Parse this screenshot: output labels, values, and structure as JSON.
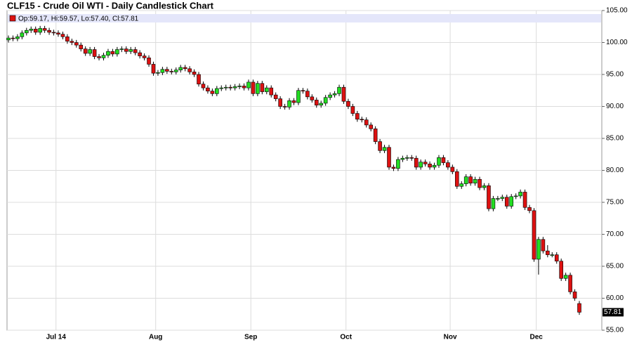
{
  "chart_data": {
    "type": "candlestick",
    "title": "CLF15 - Crude Oil WTI - Daily Candlestick Chart",
    "legend": "Op:59.17, Hi:59.57, Lo:57.40, Cl:57.81",
    "price_tag": "57.81",
    "up_color": "#22dd22",
    "down_color": "#dd1111",
    "categories": [
      null,
      null,
      null,
      null,
      null,
      null,
      null,
      null,
      null,
      null,
      null,
      "Jul 14",
      null,
      null,
      null,
      null,
      null,
      null,
      null,
      null,
      null,
      null,
      null,
      null,
      null,
      null,
      null,
      null,
      null,
      null,
      null,
      null,
      null,
      "Aug",
      null,
      null,
      null,
      null,
      null,
      null,
      null,
      null,
      null,
      null,
      null,
      null,
      null,
      null,
      null,
      null,
      null,
      null,
      null,
      null,
      "Sep",
      null,
      null,
      null,
      null,
      null,
      null,
      null,
      null,
      null,
      null,
      null,
      null,
      null,
      null,
      null,
      null,
      null,
      null,
      null,
      null,
      "Oct",
      null,
      null,
      null,
      null,
      null,
      null,
      null,
      null,
      null,
      null,
      null,
      null,
      null,
      null,
      null,
      null,
      null,
      null,
      null,
      null,
      null,
      null,
      "Nov",
      null,
      null,
      null,
      null,
      null,
      null,
      null,
      null,
      null,
      null,
      null,
      null,
      null,
      null,
      null,
      null,
      null,
      null,
      "Dec",
      null,
      null,
      null,
      null,
      null,
      null,
      null,
      null,
      null
    ],
    "open": [
      100.4,
      100.7,
      100.6,
      100.9,
      101.5,
      101.9,
      102.1,
      101.6,
      102.2,
      101.9,
      101.6,
      101.5,
      101.3,
      100.9,
      100.2,
      100.0,
      99.6,
      99.0,
      98.3,
      98.9,
      97.8,
      97.6,
      98.0,
      98.6,
      98.2,
      98.9,
      99.0,
      98.6,
      98.9,
      98.4,
      97.9,
      97.6,
      96.6,
      95.2,
      95.3,
      95.8,
      95.5,
      95.4,
      95.7,
      96.1,
      95.9,
      95.4,
      95.0,
      93.5,
      92.9,
      92.4,
      92.0,
      92.8,
      92.9,
      93.0,
      92.9,
      93.1,
      93.2,
      92.9,
      93.8,
      92.0,
      93.6,
      92.3,
      92.9,
      91.8,
      91.2,
      90.0,
      89.9,
      90.9,
      90.6,
      92.5,
      92.4,
      91.5,
      91.0,
      90.2,
      90.5,
      91.4,
      91.8,
      92.0,
      93.0,
      90.8,
      90.0,
      88.9,
      88.0,
      87.9,
      87.1,
      86.5,
      84.5,
      83.1,
      83.6,
      80.5,
      80.3,
      81.7,
      81.9,
      82.0,
      81.9,
      80.5,
      81.3,
      81.0,
      80.5,
      80.8,
      82.0,
      81.2,
      80.5,
      79.8,
      77.5,
      77.9,
      79.0,
      78.0,
      78.6,
      77.3,
      77.6,
      74.0,
      75.6,
      75.6,
      75.8,
      74.4,
      75.9,
      76.0,
      76.6,
      74.2,
      73.7,
      66.1,
      69.2,
      67.4,
      66.8,
      66.8,
      65.8,
      63.1,
      63.6,
      61.0,
      59.17
    ],
    "high": [
      101.1,
      101.1,
      101.3,
      101.9,
      102.3,
      102.5,
      102.5,
      102.6,
      102.6,
      102.3,
      102.0,
      101.9,
      101.7,
      101.3,
      100.6,
      100.4,
      100.0,
      99.4,
      99.3,
      99.3,
      98.2,
      98.4,
      99.0,
      99.0,
      99.3,
      99.4,
      99.4,
      99.3,
      99.3,
      98.8,
      98.3,
      98.0,
      97.0,
      95.7,
      96.2,
      96.2,
      95.9,
      96.1,
      96.5,
      96.5,
      96.3,
      95.8,
      95.4,
      93.9,
      93.3,
      92.8,
      93.2,
      93.3,
      93.4,
      93.4,
      93.5,
      93.6,
      93.6,
      94.2,
      94.2,
      94.0,
      94.0,
      93.3,
      93.3,
      92.2,
      91.6,
      90.4,
      91.3,
      91.3,
      92.9,
      92.9,
      92.8,
      91.9,
      91.4,
      90.9,
      91.8,
      92.2,
      92.4,
      93.4,
      93.4,
      91.2,
      90.4,
      89.3,
      88.4,
      88.3,
      87.5,
      86.9,
      84.9,
      84.0,
      84.0,
      80.9,
      82.1,
      82.3,
      82.4,
      82.4,
      82.3,
      81.7,
      81.7,
      81.4,
      81.2,
      82.4,
      82.4,
      81.6,
      80.9,
      80.2,
      78.3,
      79.4,
      79.4,
      79.0,
      79.0,
      78.0,
      78.0,
      76.0,
      76.0,
      76.2,
      76.2,
      76.3,
      76.4,
      77.0,
      77.0,
      74.6,
      74.1,
      69.6,
      69.6,
      68.3,
      67.2,
      67.2,
      66.2,
      64.0,
      64.0,
      61.4,
      59.57
    ],
    "low": [
      100.0,
      100.2,
      100.2,
      100.5,
      101.1,
      101.5,
      101.2,
      101.2,
      101.5,
      101.2,
      101.1,
      100.9,
      100.5,
      99.8,
      99.6,
      99.2,
      98.6,
      97.9,
      97.9,
      97.4,
      97.2,
      97.2,
      97.6,
      97.8,
      97.8,
      98.5,
      98.2,
      98.2,
      98.0,
      97.5,
      97.2,
      96.2,
      94.8,
      94.8,
      94.9,
      95.1,
      95.0,
      95.0,
      95.3,
      95.5,
      95.0,
      94.6,
      93.1,
      92.5,
      92.0,
      91.6,
      91.6,
      92.4,
      92.5,
      92.5,
      92.5,
      92.7,
      92.5,
      92.5,
      91.6,
      91.6,
      91.9,
      91.9,
      91.4,
      90.8,
      89.6,
      89.5,
      89.5,
      90.2,
      90.2,
      92.0,
      91.1,
      90.6,
      89.8,
      89.8,
      90.1,
      91.0,
      91.4,
      91.6,
      90.4,
      89.6,
      88.5,
      87.6,
      87.5,
      86.7,
      86.1,
      84.1,
      82.7,
      82.7,
      80.1,
      79.9,
      79.9,
      81.3,
      81.5,
      81.5,
      80.1,
      80.1,
      80.6,
      80.1,
      80.1,
      80.4,
      80.8,
      80.1,
      79.4,
      77.1,
      77.1,
      77.5,
      77.6,
      77.6,
      76.9,
      76.9,
      73.6,
      73.6,
      75.2,
      75.2,
      74.0,
      74.0,
      75.5,
      75.6,
      73.8,
      73.3,
      65.7,
      63.7,
      67.0,
      66.4,
      66.4,
      65.4,
      62.7,
      62.7,
      60.6,
      59.6,
      57.4
    ],
    "close": [
      100.7,
      100.6,
      100.9,
      101.5,
      101.9,
      102.1,
      101.6,
      102.2,
      101.9,
      101.6,
      101.5,
      101.3,
      100.9,
      100.2,
      100.0,
      99.6,
      99.0,
      98.3,
      98.9,
      97.8,
      97.6,
      98.0,
      98.6,
      98.2,
      98.9,
      99.0,
      98.6,
      98.9,
      98.4,
      97.9,
      97.6,
      96.6,
      95.2,
      95.3,
      95.8,
      95.5,
      95.4,
      95.7,
      96.1,
      95.9,
      95.4,
      95.0,
      93.5,
      92.9,
      92.4,
      92.0,
      92.8,
      92.9,
      93.0,
      92.9,
      93.1,
      93.2,
      92.9,
      93.8,
      92.0,
      93.6,
      92.3,
      92.9,
      91.8,
      91.2,
      90.0,
      89.9,
      90.9,
      90.6,
      92.5,
      92.4,
      91.5,
      91.0,
      90.2,
      90.5,
      91.4,
      91.8,
      92.0,
      93.0,
      90.8,
      90.0,
      88.9,
      88.0,
      87.9,
      87.1,
      86.5,
      84.5,
      83.1,
      83.6,
      80.5,
      80.3,
      81.7,
      81.9,
      82.0,
      81.9,
      80.5,
      81.3,
      81.0,
      80.5,
      80.8,
      82.0,
      81.2,
      80.5,
      79.8,
      77.5,
      77.9,
      79.0,
      78.0,
      78.6,
      77.3,
      77.6,
      74.0,
      75.6,
      75.6,
      75.8,
      74.4,
      75.9,
      76.0,
      76.6,
      74.2,
      73.7,
      66.1,
      69.2,
      67.4,
      66.8,
      66.8,
      65.8,
      63.1,
      63.6,
      61.0,
      60.0,
      57.81
    ],
    "ylim": [
      55,
      105
    ],
    "yticks": [
      {
        "value": 55,
        "label": "55.00"
      },
      {
        "value": 60,
        "label": "60.00"
      },
      {
        "value": 65,
        "label": "65.00"
      },
      {
        "value": 70,
        "label": "70.00"
      },
      {
        "value": 75,
        "label": "75.00"
      },
      {
        "value": 80,
        "label": "80.00"
      },
      {
        "value": 85,
        "label": "85.00"
      },
      {
        "value": 90,
        "label": "90.00"
      },
      {
        "value": 95,
        "label": "95.00"
      },
      {
        "value": 100,
        "label": "100.00"
      },
      {
        "value": 105,
        "label": "105.00"
      }
    ],
    "grid": true
  }
}
